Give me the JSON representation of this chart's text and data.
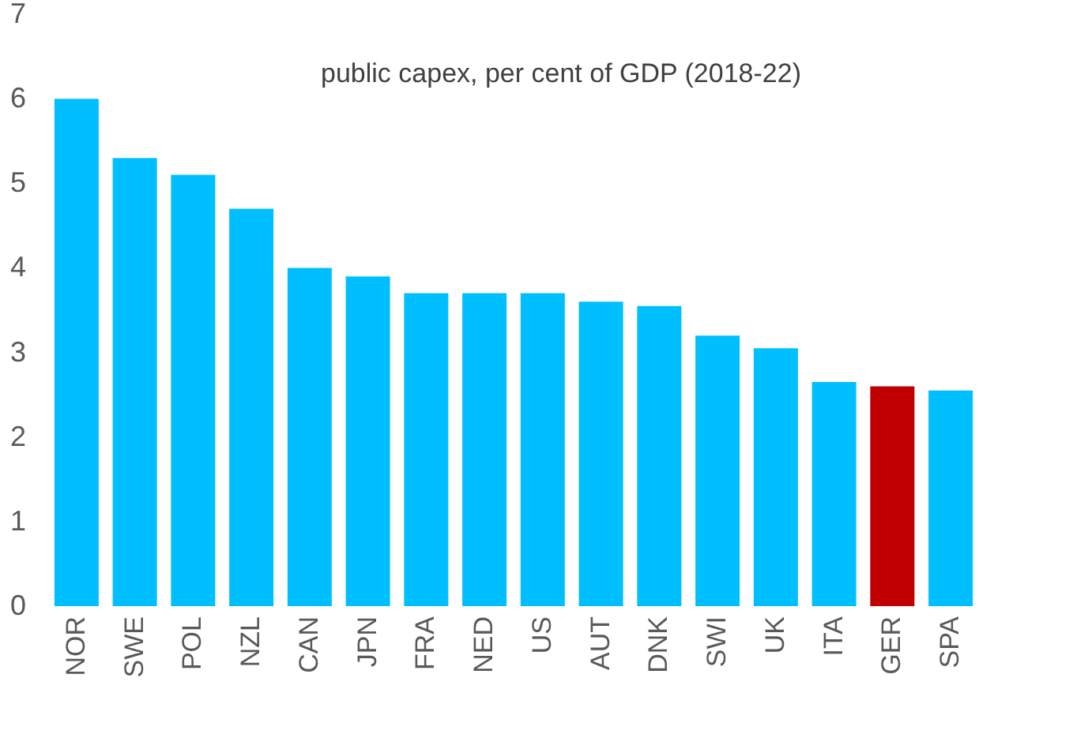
{
  "chart_data": {
    "type": "bar",
    "title": "public capex, per cent of GDP (2018-22)",
    "categories": [
      "NOR",
      "SWE",
      "POL",
      "NZL",
      "CAN",
      "JPN",
      "FRA",
      "NED",
      "US",
      "AUT",
      "DNK",
      "SWI",
      "UK",
      "ITA",
      "GER",
      "SPA"
    ],
    "values": [
      6.0,
      5.3,
      5.1,
      4.7,
      4.0,
      3.9,
      3.7,
      3.7,
      3.7,
      3.6,
      3.55,
      3.2,
      3.05,
      2.65,
      2.6,
      2.55
    ],
    "colors": [
      "#00bfff",
      "#00bfff",
      "#00bfff",
      "#00bfff",
      "#00bfff",
      "#00bfff",
      "#00bfff",
      "#00bfff",
      "#00bfff",
      "#00bfff",
      "#00bfff",
      "#00bfff",
      "#00bfff",
      "#00bfff",
      "#c00000",
      "#00bfff"
    ],
    "ylim": [
      0,
      7
    ],
    "yticks": [
      0,
      1,
      2,
      3,
      4,
      5,
      6,
      7
    ]
  }
}
